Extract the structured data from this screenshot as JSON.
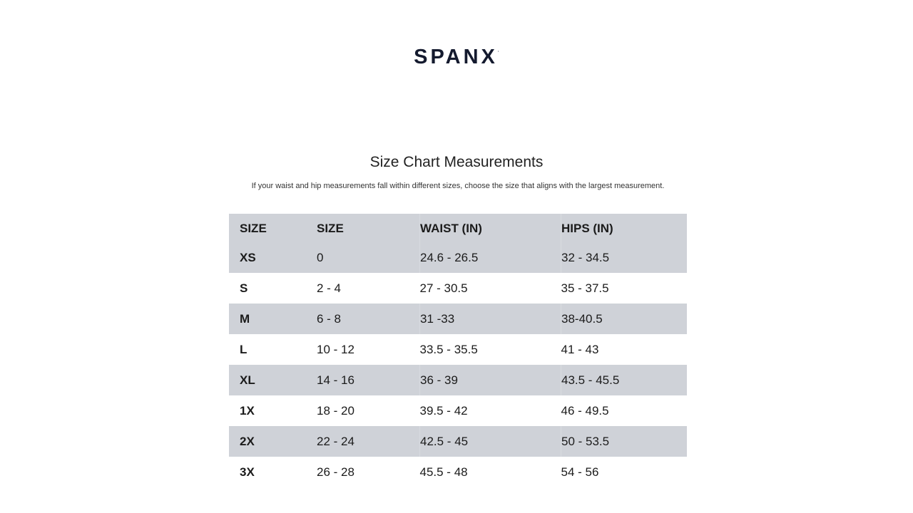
{
  "brand": "SPANX",
  "title": "Size Chart Measurements",
  "subtitle": "If your waist and hip measurements fall within different sizes, choose the size that aligns with the largest measurement.",
  "table": {
    "headers": [
      "SIZE",
      "SIZE",
      "WAIST (IN)",
      "HIPS (IN)"
    ],
    "rows": [
      [
        "XS",
        "0",
        "24.6 - 26.5",
        "32 - 34.5"
      ],
      [
        "S",
        "2 - 4",
        "27 - 30.5",
        "35 - 37.5"
      ],
      [
        "M",
        "6 - 8",
        "31 -33",
        "38-40.5"
      ],
      [
        "L",
        "10 - 12",
        "33.5 - 35.5",
        "41 - 43"
      ],
      [
        "XL",
        "14 - 16",
        "36 - 39",
        "43.5 - 45.5"
      ],
      [
        "1X",
        "18 - 20",
        "39.5 - 42",
        "46 - 49.5"
      ],
      [
        "2X",
        "22 - 24",
        "42.5 - 45",
        "50 - 53.5"
      ],
      [
        "3X",
        "26 - 28",
        "45.5 - 48",
        "54 - 56"
      ]
    ]
  },
  "colors": {
    "stripe": "#cfd2d8",
    "brand": "#141a2e"
  }
}
